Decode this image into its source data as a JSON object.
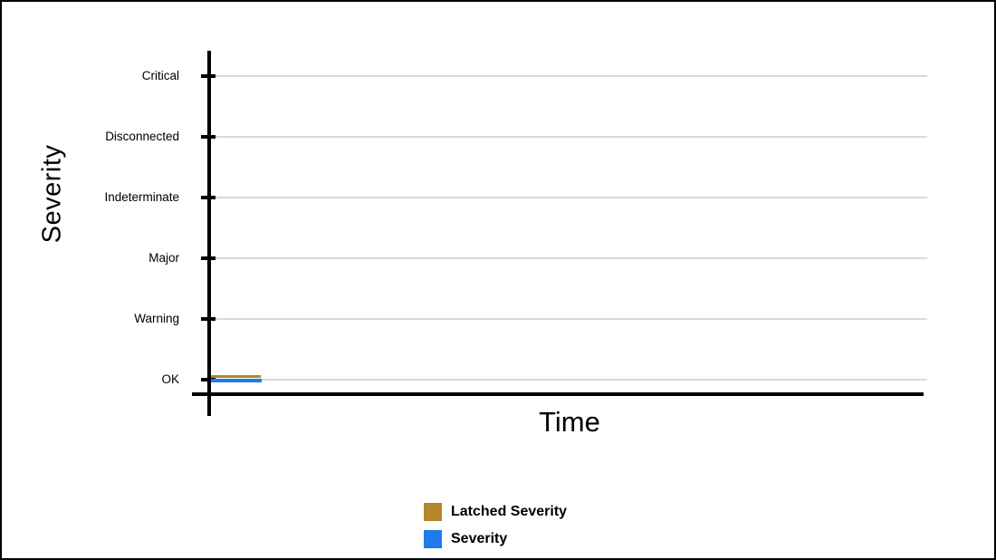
{
  "chart_data": {
    "type": "line",
    "title": "",
    "xlabel": "Time",
    "ylabel": "Severity",
    "y_axis": {
      "categories_top_to_bottom": [
        "Critical",
        "Disconnected",
        "Indeterminate",
        "Major",
        "Warning",
        "OK"
      ],
      "grid": true
    },
    "x_axis": {
      "tick_labels_visible": false
    },
    "series": [
      {
        "name": "Latched Severity",
        "color": "#B4872B",
        "y_value": "OK",
        "x_start_frac": 0.0,
        "x_end_frac": 0.07
      },
      {
        "name": "Severity",
        "color": "#1F7BEA",
        "y_value": "OK",
        "x_start_frac": 0.0,
        "x_end_frac": 0.07
      }
    ],
    "legend_position": "bottom-center",
    "gridline_color": "#d9d9d9",
    "axis_color": "#000000"
  }
}
